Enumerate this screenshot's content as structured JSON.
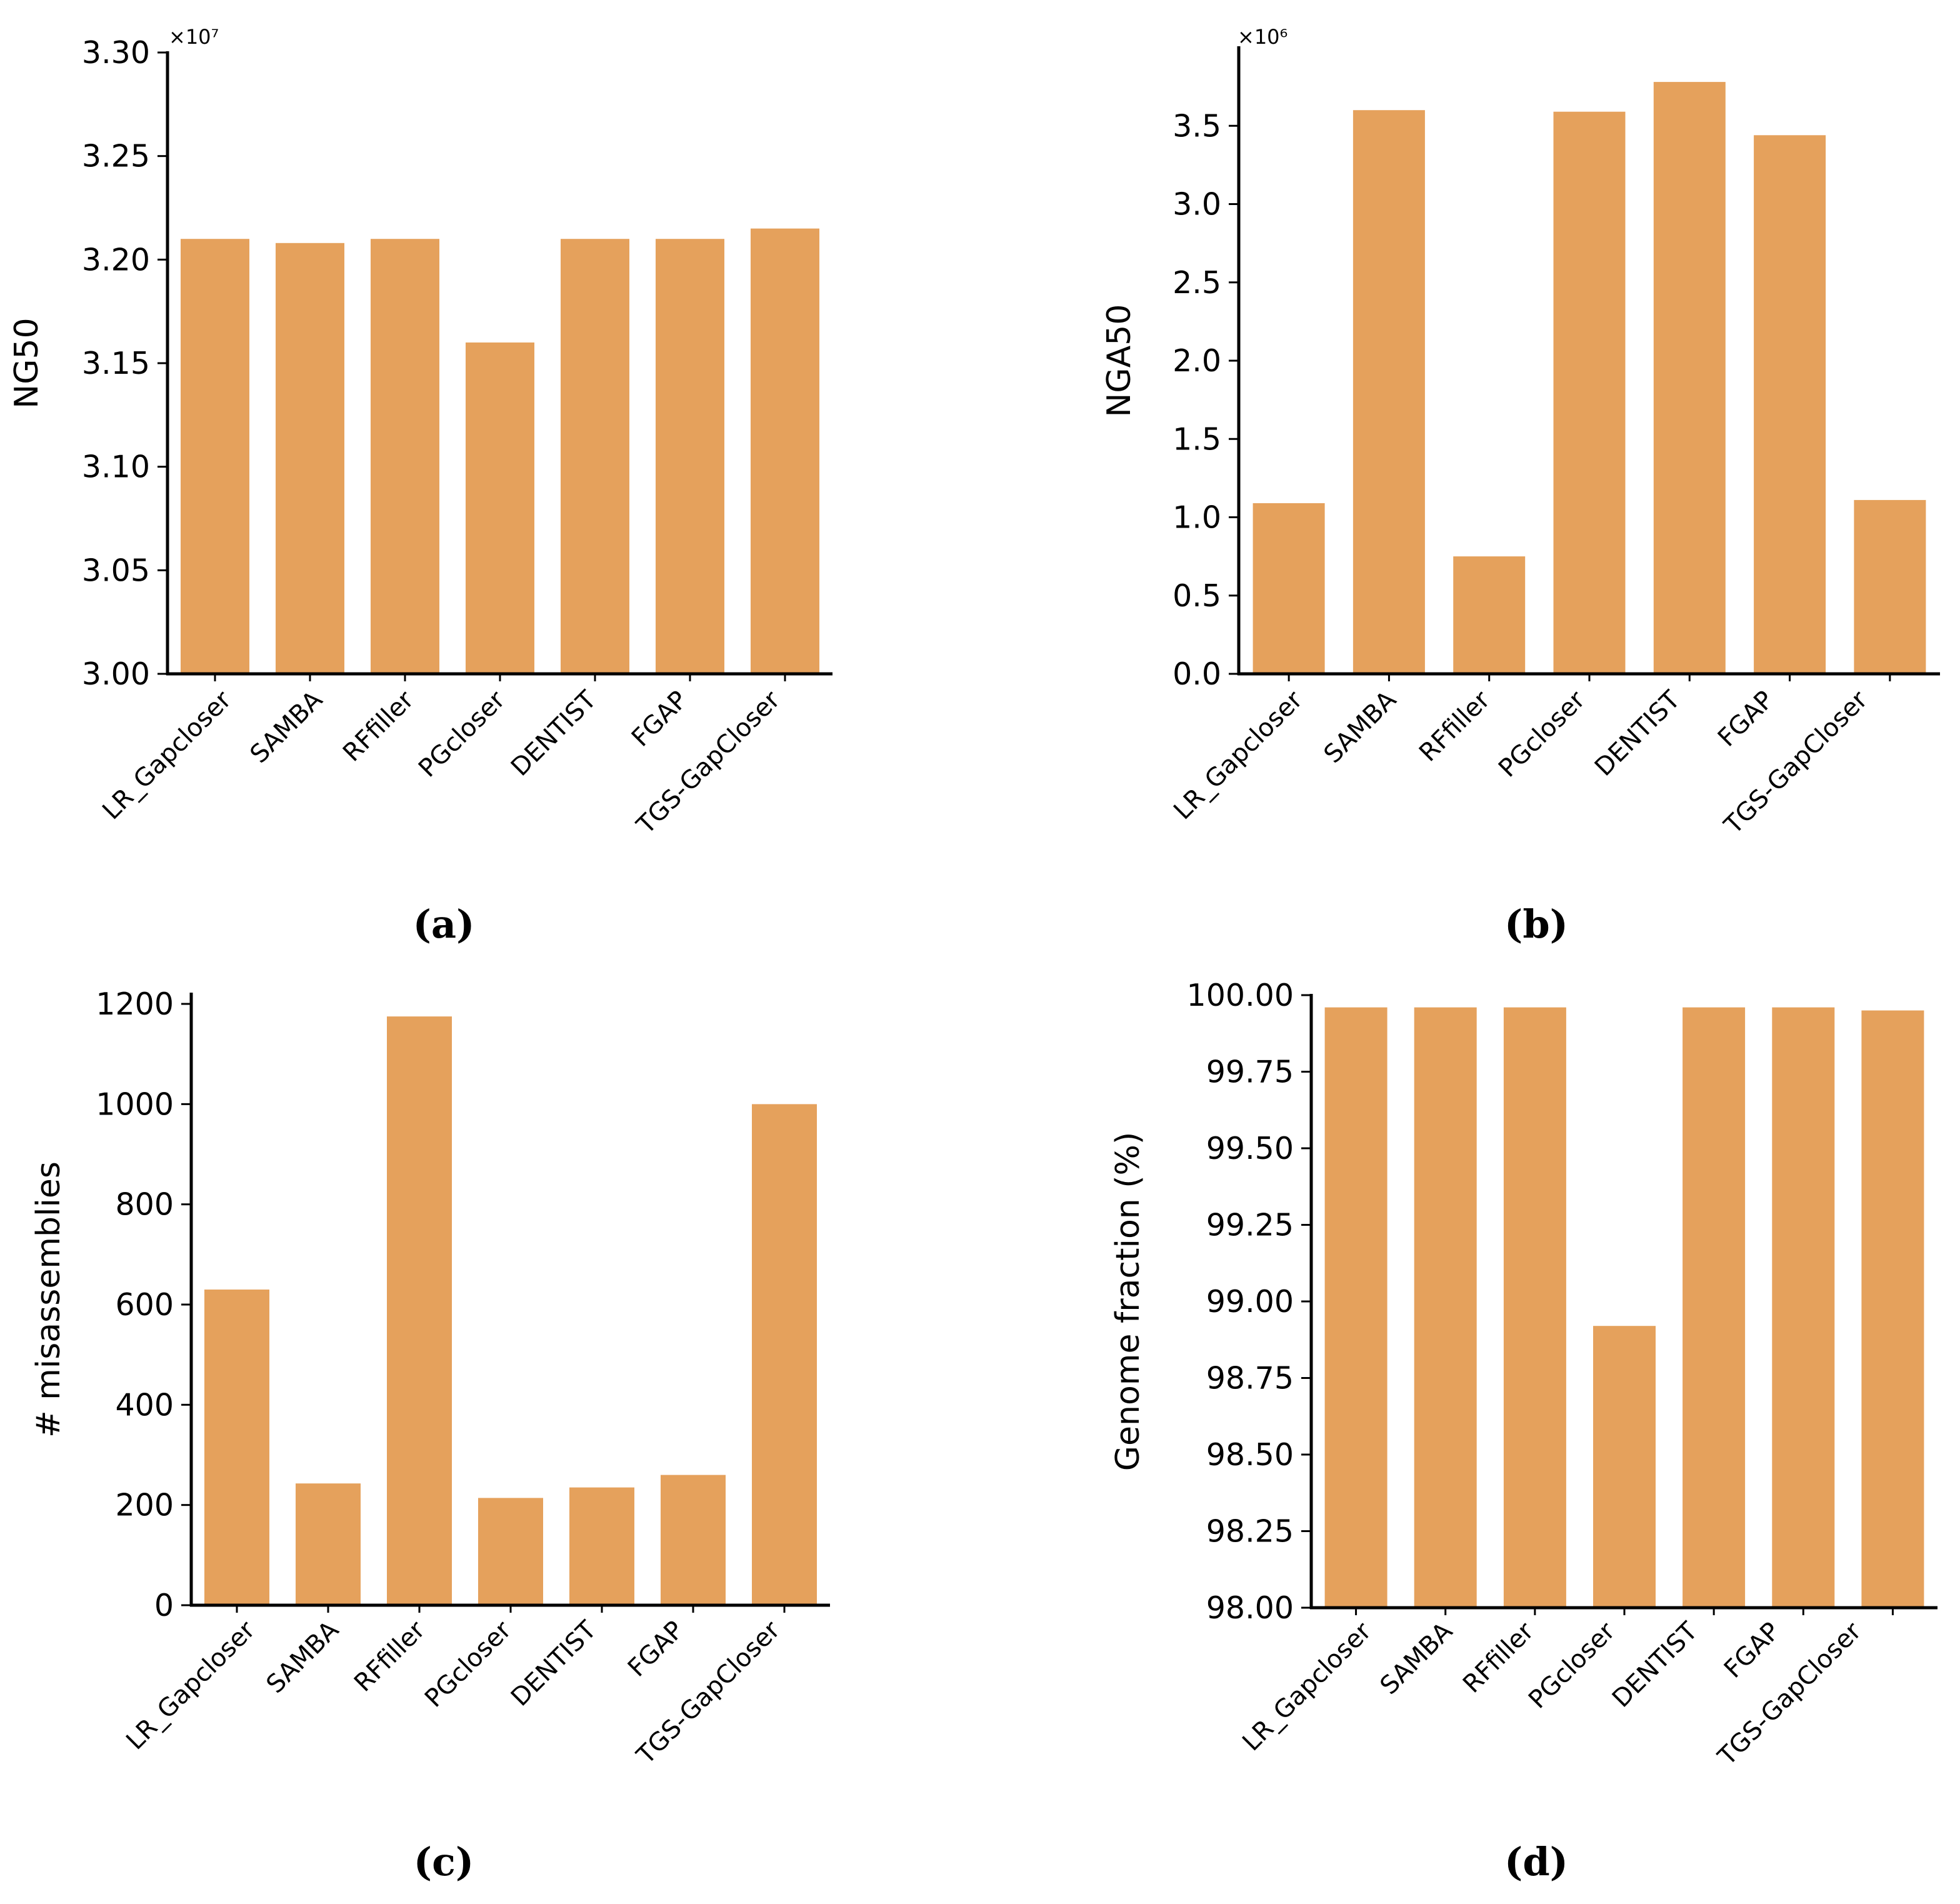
{
  "colors": {
    "bar": "#E5A15C",
    "axis": "#000000"
  },
  "chart_data": [
    {
      "id": "a",
      "type": "bar",
      "panel_label": "(a)",
      "title": "",
      "xlabel": "",
      "ylabel": "NG50",
      "exponent_label": "×10⁷",
      "categories": [
        "LR_Gapcloser",
        "SAMBA",
        "RFfiller",
        "PGcloser",
        "DENTIST",
        "FGAP",
        "TGS-GapCloser"
      ],
      "values": [
        3.21,
        3.208,
        3.21,
        3.16,
        3.21,
        3.21,
        3.215
      ],
      "ylim": [
        3.0,
        3.3
      ],
      "yticks": [
        3.0,
        3.05,
        3.1,
        3.15,
        3.2,
        3.25,
        3.3
      ],
      "ytick_labels": [
        "3.00",
        "3.05",
        "3.10",
        "3.15",
        "3.20",
        "3.25",
        "3.30"
      ]
    },
    {
      "id": "b",
      "type": "bar",
      "panel_label": "(b)",
      "title": "",
      "xlabel": "",
      "ylabel": "NGA50",
      "exponent_label": "×10⁶",
      "categories": [
        "LR_Gapcloser",
        "SAMBA",
        "RFfiller",
        "PGcloser",
        "DENTIST",
        "FGAP",
        "TGS-GapCloser"
      ],
      "values": [
        1.09,
        3.6,
        0.75,
        3.59,
        3.78,
        3.44,
        1.11
      ],
      "ylim": [
        0.0,
        4.0
      ],
      "yticks": [
        0.0,
        0.5,
        1.0,
        1.5,
        2.0,
        2.5,
        3.0,
        3.5
      ],
      "ytick_labels": [
        "0.0",
        "0.5",
        "1.0",
        "1.5",
        "2.0",
        "2.5",
        "3.0",
        "3.5"
      ]
    },
    {
      "id": "c",
      "type": "bar",
      "panel_label": "(c)",
      "title": "",
      "xlabel": "",
      "ylabel": "# misassemblies",
      "exponent_label": "",
      "categories": [
        "LR_Gapcloser",
        "SAMBA",
        "RFfiller",
        "PGcloser",
        "DENTIST",
        "FGAP",
        "TGS-GapCloser"
      ],
      "values": [
        630,
        243,
        1175,
        214,
        235,
        260,
        1000
      ],
      "ylim": [
        0,
        1220
      ],
      "yticks": [
        0,
        200,
        400,
        600,
        800,
        1000,
        1200
      ],
      "ytick_labels": [
        "0",
        "200",
        "400",
        "600",
        "800",
        "1000",
        "1200"
      ]
    },
    {
      "id": "d",
      "type": "bar",
      "panel_label": "(d)",
      "title": "",
      "xlabel": "",
      "ylabel": "Genome fraction (%)",
      "exponent_label": "",
      "categories": [
        "LR_Gapcloser",
        "SAMBA",
        "RFfiller",
        "PGcloser",
        "DENTIST",
        "FGAP",
        "TGS-GapCloser"
      ],
      "values": [
        99.96,
        99.96,
        99.96,
        98.92,
        99.96,
        99.96,
        99.95
      ],
      "ylim": [
        98.0,
        100.0
      ],
      "yticks": [
        98.0,
        98.25,
        98.5,
        98.75,
        99.0,
        99.25,
        99.5,
        99.75,
        100.0
      ],
      "ytick_labels": [
        "98.00",
        "98.25",
        "98.50",
        "98.75",
        "99.00",
        "99.25",
        "99.50",
        "99.75",
        "100.00"
      ]
    }
  ]
}
